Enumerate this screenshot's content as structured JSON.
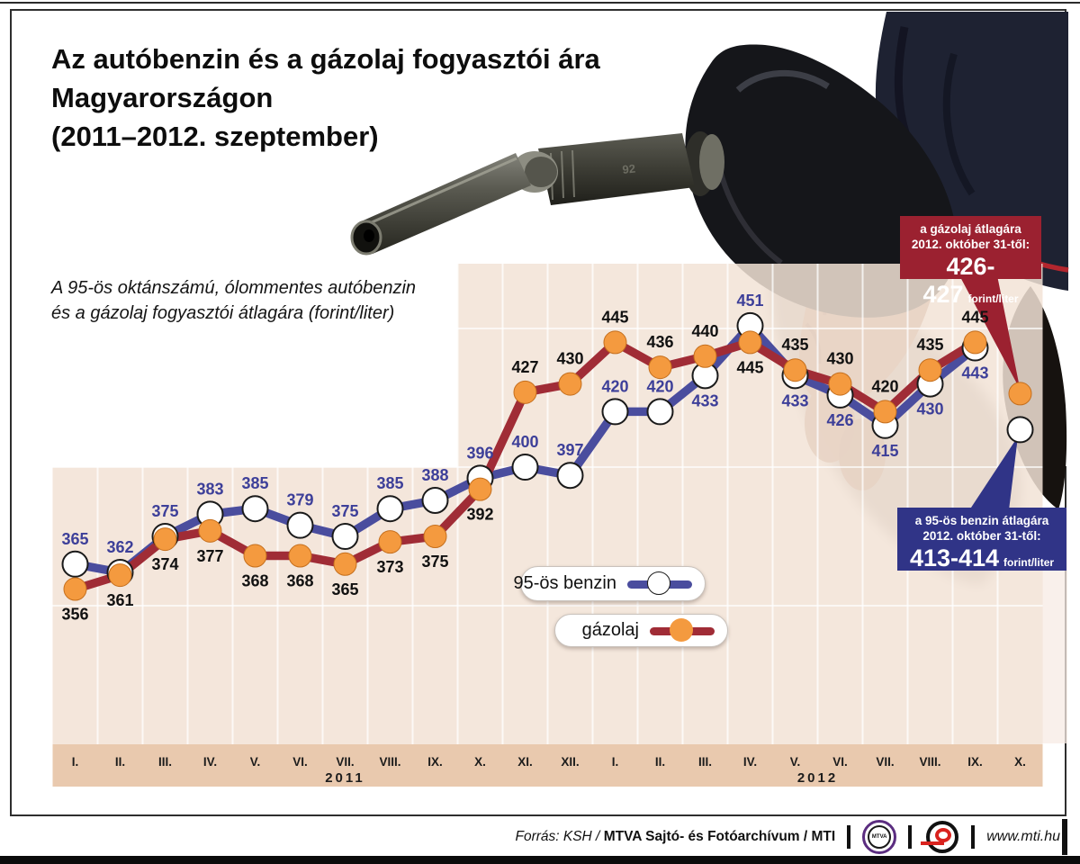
{
  "title": {
    "line1": "Az autóbenzin és a gázolaj fogyasztói ára",
    "line2": "Magyarországon",
    "line3": "(2011–2012. szeptember)"
  },
  "subtitle": {
    "line1": "A 95-ös oktánszámú, ólommentes autóbenzin",
    "line2": "és a gázolaj fogyasztói átlagára (forint/liter)"
  },
  "legend": {
    "benzin_label": "95-ös benzin",
    "gazolaj_label": "gázolaj"
  },
  "callouts": {
    "gazolaj": {
      "line1": "a gázolaj átlagára",
      "line2": "2012. október 31-től:",
      "value": "426-427",
      "unit": "forint/liter",
      "bg": "#9b2130"
    },
    "benzin": {
      "line1": "a 95-ös benzin átlagára",
      "line2": "2012. október 31-től:",
      "value": "413-414",
      "unit": "forint/liter",
      "bg": "#303487"
    }
  },
  "footer": {
    "source_italic": "Forrás: KSH /",
    "source_bold": "MTVA Sajtó- és Fotóarchívum",
    "source_suffix": "/ MTI",
    "mtva_logo_text": "MTVA",
    "website": "www.mti.hu"
  },
  "colors": {
    "benzin_line": "#4a4d9e",
    "benzin_label": "#3d3f99",
    "benzin_marker_fill": "#ffffff",
    "benzin_marker_stroke": "#1a1a1a",
    "gazolaj_line": "#a02c36",
    "gazolaj_label": "#111111",
    "gazolaj_marker_fill": "#f49a3f",
    "gazolaj_marker_stroke": "#c56f1d",
    "plot_bg": "#f2e3d6",
    "axis_strip": "#e9c9ae",
    "gridline": "#ffffff",
    "axis_text": "#1c1c1c"
  },
  "chart_data": {
    "type": "line",
    "title": "Az autóbenzin és a gázolaj fogyasztói ára Magyarországon (2011–2012. szeptember)",
    "ylabel": "forint/liter",
    "ylim": [
      300,
      475
    ],
    "gridlines_forint": [
      350,
      400,
      450
    ],
    "grid": true,
    "legend_position": "inside-bottom-left",
    "x_categories": [
      "I.",
      "II.",
      "III.",
      "IV.",
      "V.",
      "VI.",
      "VII.",
      "VIII.",
      "IX.",
      "X.",
      "XI.",
      "XII.",
      "I.",
      "II.",
      "III.",
      "IV.",
      "V.",
      "VI.",
      "VII.",
      "VIII.",
      "IX.",
      "X."
    ],
    "year_labels": [
      {
        "text": "2011",
        "center_index": 6
      },
      {
        "text": "2012",
        "center_index": 16.5
      }
    ],
    "series": [
      {
        "name": "95-ös benzin",
        "values": [
          365,
          362,
          375,
          383,
          385,
          379,
          375,
          385,
          388,
          396,
          400,
          397,
          420,
          420,
          433,
          451,
          433,
          426,
          415,
          430,
          443
        ],
        "label_side": [
          "above",
          "above",
          "above",
          "above",
          "above",
          "above",
          "above",
          "above",
          "above",
          "above",
          "above",
          "above",
          "above",
          "above",
          "below",
          "above",
          "below",
          "below",
          "below",
          "below",
          "below"
        ]
      },
      {
        "name": "gázolaj",
        "values": [
          356,
          361,
          374,
          377,
          368,
          368,
          365,
          373,
          375,
          392,
          427,
          430,
          445,
          436,
          440,
          445,
          435,
          430,
          420,
          435,
          445
        ],
        "label_side": [
          "below",
          "below",
          "below",
          "below",
          "below",
          "below",
          "below",
          "below",
          "below",
          "below",
          "above",
          "above",
          "above",
          "above",
          "above",
          "below",
          "above",
          "above",
          "above",
          "above",
          "above"
        ]
      }
    ],
    "october_2012_markers": {
      "benzin_range": "413-414",
      "gazolaj_range": "426-427"
    }
  }
}
